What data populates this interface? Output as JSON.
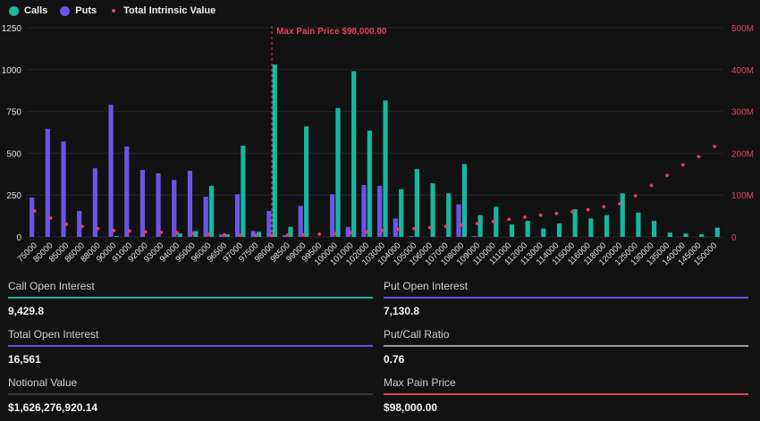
{
  "legend": {
    "calls_label": "Calls",
    "puts_label": "Puts",
    "intrinsic_label": "Total Intrinsic Value"
  },
  "colors": {
    "calls": "#14b8a0",
    "puts": "#6a55e8",
    "intrinsic": "#e8415a",
    "background": "#121212",
    "grid": "#262626",
    "total_oi_line": "#6a55e8",
    "put_call_line": "#9a9a9a",
    "notional_line": "#3a3a3a",
    "max_pain_line": "#e8415a",
    "call_oi_line": "#14b8a0",
    "put_oi_line": "#6a55e8"
  },
  "chart_data": {
    "type": "bar",
    "categories": [
      "75000",
      "80000",
      "85000",
      "86000",
      "88000",
      "90000",
      "91000",
      "92000",
      "93000",
      "94000",
      "95000",
      "96000",
      "96500",
      "97000",
      "97500",
      "98000",
      "98500",
      "99000",
      "99500",
      "100000",
      "101000",
      "102000",
      "103000",
      "104000",
      "105000",
      "106000",
      "107000",
      "108000",
      "109000",
      "110000",
      "111000",
      "112000",
      "113000",
      "114000",
      "115000",
      "116000",
      "118000",
      "120000",
      "125000",
      "130000",
      "135000",
      "140000",
      "145000",
      "150000"
    ],
    "series": [
      {
        "name": "Calls",
        "axis": "left",
        "values": [
          0,
          0,
          0,
          0,
          0,
          5,
          0,
          0,
          0,
          20,
          35,
          305,
          15,
          545,
          30,
          1030,
          60,
          660,
          0,
          770,
          990,
          635,
          815,
          285,
          405,
          320,
          260,
          435,
          130,
          180,
          75,
          95,
          50,
          80,
          165,
          110,
          130,
          260,
          145,
          95,
          25,
          20,
          15,
          55
        ]
      },
      {
        "name": "Puts",
        "axis": "left",
        "values": [
          235,
          645,
          570,
          155,
          410,
          790,
          540,
          400,
          380,
          340,
          395,
          240,
          15,
          255,
          35,
          155,
          10,
          185,
          0,
          255,
          60,
          310,
          305,
          110,
          5,
          0,
          0,
          195,
          5,
          0,
          0,
          0,
          0,
          0,
          0,
          0,
          0,
          0,
          0,
          0,
          0,
          0,
          0,
          0
        ]
      },
      {
        "name": "Total Intrinsic Value",
        "axis": "right",
        "type": "scatter",
        "values": [
          62000000,
          45000000,
          30000000,
          25000000,
          20000000,
          15000000,
          14000000,
          12000000,
          11000000,
          9500000,
          8000000,
          6000000,
          5000000,
          4000000,
          3500000,
          3000000,
          4500000,
          5000000,
          6500000,
          8000000,
          10000000,
          12000000,
          15000000,
          18000000,
          20000000,
          22000000,
          25000000,
          28000000,
          32000000,
          37000000,
          42000000,
          47000000,
          52000000,
          56000000,
          60000000,
          65000000,
          72000000,
          79000000,
          98000000,
          123000000,
          147000000,
          172000000,
          192000000,
          216000000
        ]
      }
    ],
    "yleft_ticks": [
      "0",
      "250",
      "500",
      "750",
      "1000",
      "1250"
    ],
    "yleft_lim": [
      0,
      1250
    ],
    "yright_ticks": [
      "0",
      "100M",
      "200M",
      "300M",
      "400M",
      "500M"
    ],
    "yright_lim": [
      0,
      500000000
    ],
    "max_pain_label": "Max Pain Price $98,000.00",
    "max_pain_category": "98000"
  },
  "stats": [
    {
      "label": "Call Open Interest",
      "value": "9,429.8",
      "color": "#14b8a0"
    },
    {
      "label": "Put Open Interest",
      "value": "7,130.8",
      "color": "#6a55e8"
    },
    {
      "label": "Total Open Interest",
      "value": "16,561",
      "color": "#6a55e8"
    },
    {
      "label": "Put/Call Ratio",
      "value": "0.76",
      "color": "#9a9a9a"
    },
    {
      "label": "Notional Value",
      "value": "$1,626,276,920.14",
      "color": "#3a3a3a"
    },
    {
      "label": "Max Pain Price",
      "value": "$98,000.00",
      "color": "#e8415a"
    }
  ]
}
